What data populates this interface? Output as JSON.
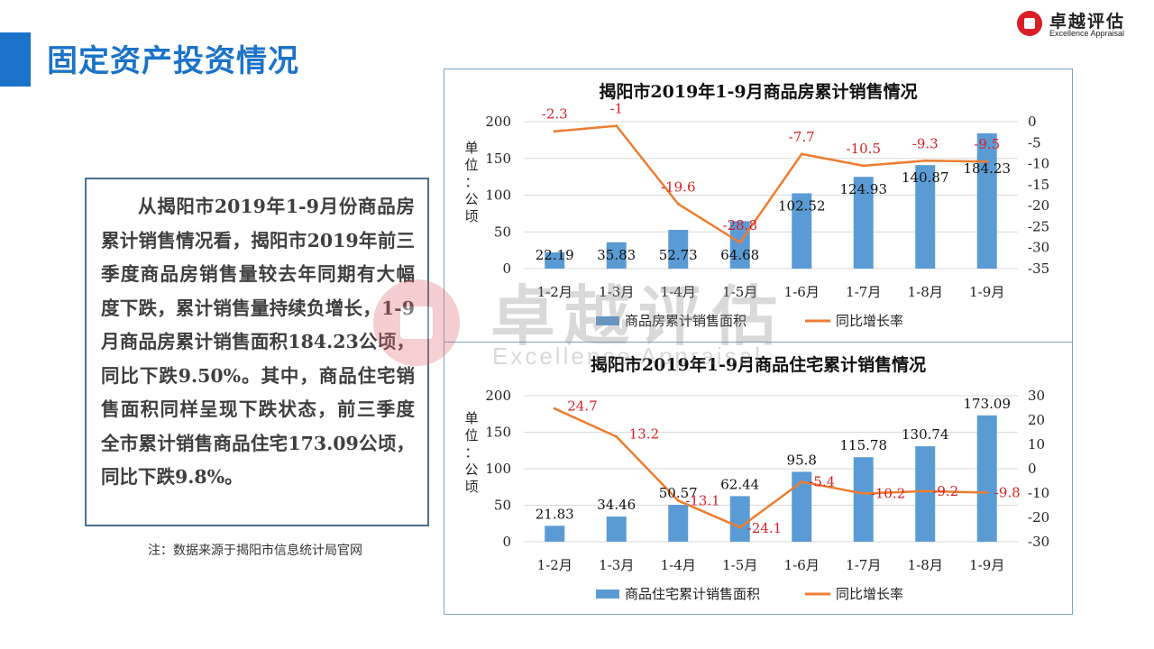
{
  "header": {
    "title": "固定资产投资情况"
  },
  "logo": {
    "name_cn": "卓越评估",
    "name_en": "Excellence Appraisal"
  },
  "summary_text": "从揭阳市2019年1-9月份商品房累计销售情况看，揭阳市2019年前三季度商品房销售量较去年同期有大幅度下跌，累计销售量持续负增长，1-9月商品房累计销售面积184.23公顷，同比下跌9.50%。其中，商品住宅销售面积同样呈现下跌状态，前三季度全市累计销售商品住宅173.09公顷，同比下跌9.8%。",
  "note": "注：数据来源于揭阳市信息统计局官网",
  "watermark": {
    "cn": "卓越评估",
    "en": "Excellence Appraisal"
  },
  "colors": {
    "accent": "#1b73c9",
    "bar": "#5b9bd5",
    "line": "#ed7d31",
    "rate_label": "#d81f26"
  },
  "chart_data": [
    {
      "type": "bar",
      "title": "揭阳市2019年1-9月商品房累计销售情况",
      "ylabel": "单位：公顷",
      "categories": [
        "1-2月",
        "1-3月",
        "1-4月",
        "1-5月",
        "1-6月",
        "1-7月",
        "1-8月",
        "1-9月"
      ],
      "series": [
        {
          "name": "商品房累计销售面积",
          "axis": "left",
          "kind": "bar",
          "values": [
            22.19,
            35.83,
            52.73,
            64.68,
            102.52,
            124.93,
            140.87,
            184.23
          ]
        },
        {
          "name": "同比增长率",
          "axis": "right",
          "kind": "line",
          "values": [
            -2.3,
            -1,
            -19.6,
            -28.8,
            -7.7,
            -10.5,
            -9.3,
            -9.5
          ]
        }
      ],
      "ylim": [
        0,
        200
      ],
      "yticks": [
        0,
        50,
        100,
        150,
        200
      ],
      "y2lim": [
        -35,
        0
      ],
      "y2ticks": [
        0,
        -5,
        -10,
        -15,
        -20,
        -25,
        -30,
        -35
      ],
      "legend": "bottom"
    },
    {
      "type": "bar",
      "title": "揭阳市2019年1-9月商品住宅累计销售情况",
      "ylabel": "单位：公顷",
      "categories": [
        "1-2月",
        "1-3月",
        "1-4月",
        "1-5月",
        "1-6月",
        "1-7月",
        "1-8月",
        "1-9月"
      ],
      "series": [
        {
          "name": "商品住宅累计销售面积",
          "axis": "left",
          "kind": "bar",
          "values": [
            21.83,
            34.46,
            50.57,
            62.44,
            95.8,
            115.78,
            130.74,
            173.09
          ]
        },
        {
          "name": "同比增长率",
          "axis": "right",
          "kind": "line",
          "values": [
            24.7,
            13.2,
            -13.1,
            -24.1,
            -5.4,
            -10.2,
            -9.2,
            -9.8
          ]
        }
      ],
      "ylim": [
        0,
        200
      ],
      "yticks": [
        0,
        50,
        100,
        150,
        200
      ],
      "y2lim": [
        -30,
        30
      ],
      "y2ticks": [
        30,
        20,
        10,
        0,
        -10,
        -20,
        -30
      ],
      "legend": "bottom"
    }
  ]
}
